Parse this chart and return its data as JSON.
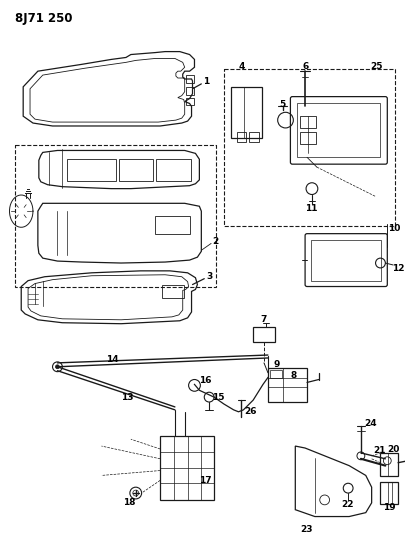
{
  "title": "8J71 250",
  "bg_color": "#ffffff",
  "lc": "#1a1a1a",
  "fig_width": 4.1,
  "fig_height": 5.33,
  "dpi": 100
}
